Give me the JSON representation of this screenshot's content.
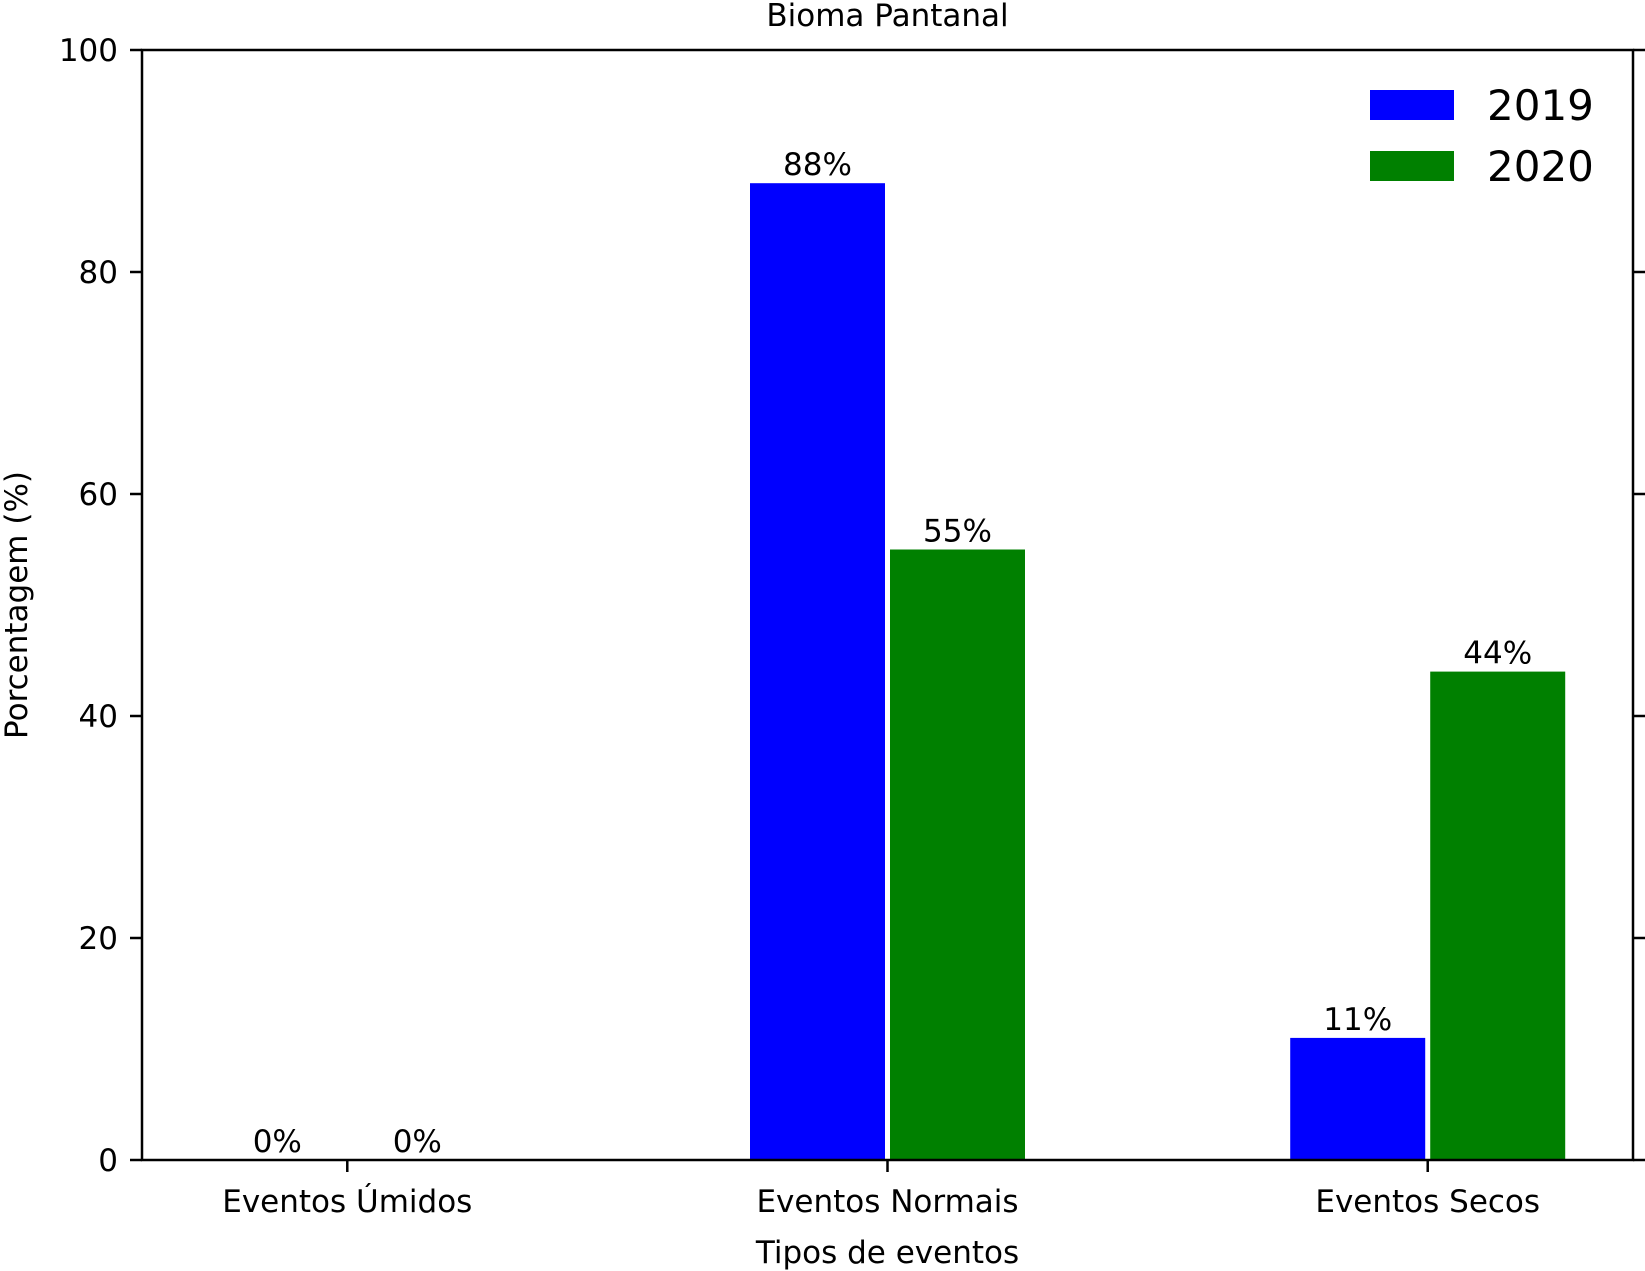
{
  "chart_data": {
    "type": "bar",
    "title": "Bioma Pantanal",
    "xlabel": "Tipos de eventos",
    "ylabel": "Porcentagem (%)",
    "categories": [
      "Eventos Úmidos",
      "Eventos Normais",
      "Eventos Secos"
    ],
    "series": [
      {
        "name": "2019",
        "color": "#0000ff",
        "values": [
          0,
          88,
          11
        ],
        "labels": [
          "0%",
          "88%",
          "11%"
        ]
      },
      {
        "name": "2020",
        "color": "#008000",
        "values": [
          0,
          55,
          44
        ],
        "labels": [
          "0%",
          "55%",
          "44%"
        ]
      }
    ],
    "ylim": [
      0,
      100
    ],
    "yticks": [
      0,
      20,
      40,
      60,
      80,
      100
    ],
    "grid": false,
    "legend_position": "top-right"
  }
}
